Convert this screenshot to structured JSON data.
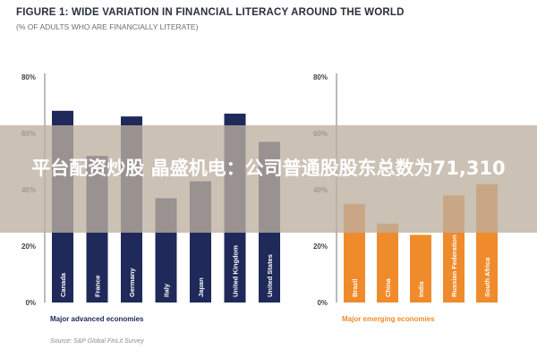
{
  "title": "FIGURE 1: WIDE VARIATION IN FINANCIAL LITERACY AROUND THE WORLD",
  "subtitle": "(% OF ADULTS WHO ARE FINANCIALLY LITERATE)",
  "overlay_text": "平台配资炒股 晶盛机电：公司普通股股东总数为71,310",
  "source": "Source: S&P Global FinLit Survey",
  "colors": {
    "advanced": "#1f2a5a",
    "emerging": "#f08b2c",
    "axis": "#555555"
  },
  "chart_data": [
    {
      "type": "bar",
      "group": "Major advanced economies",
      "categories": [
        "Canada",
        "France",
        "Germany",
        "Italy",
        "Japan",
        "United Kingdom",
        "United States"
      ],
      "values": [
        68,
        52,
        66,
        37,
        43,
        67,
        57
      ],
      "yticks": [
        "0%",
        "20%",
        "40%",
        "60%",
        "80%"
      ],
      "ylim": [
        0,
        80
      ],
      "color": "#1f2a5a"
    },
    {
      "type": "bar",
      "group": "Major emerging economies",
      "categories": [
        "Brazil",
        "China",
        "India",
        "Russian Federation",
        "South Africa"
      ],
      "values": [
        35,
        28,
        24,
        38,
        42
      ],
      "yticks": [
        "0%",
        "20%",
        "40%",
        "60%",
        "80%"
      ],
      "ylim": [
        0,
        80
      ],
      "color": "#f08b2c"
    }
  ]
}
